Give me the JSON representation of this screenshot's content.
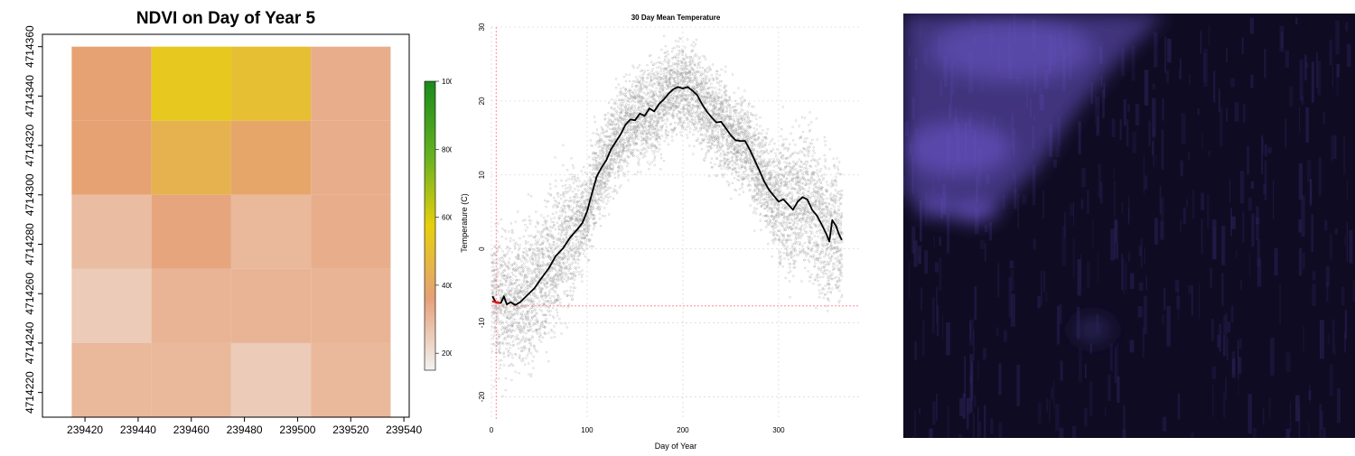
{
  "chart_data": [
    {
      "type": "heatmap",
      "title": "NDVI on Day of Year 5",
      "xlabel": "",
      "ylabel": "",
      "x_ticks": [
        239420,
        239440,
        239460,
        239480,
        239500,
        239520,
        239540
      ],
      "y_ticks": [
        4714220,
        4714240,
        4714260,
        4714280,
        4714300,
        4714320,
        4714340,
        4714360
      ],
      "xlim": [
        239404,
        239542
      ],
      "ylim": [
        4714210,
        4714365
      ],
      "cell_x_edges": [
        239415,
        239445,
        239475,
        239505,
        239535
      ],
      "cell_y_edges": [
        4714210,
        4714240,
        4714270,
        4714300,
        4714330,
        4714360
      ],
      "values": [
        [
          3700,
          5400,
          5000,
          3300
        ],
        [
          3700,
          4400,
          3900,
          3300
        ],
        [
          2900,
          3500,
          3000,
          3300
        ],
        [
          2500,
          3100,
          3100,
          3100
        ],
        [
          3000,
          3000,
          2500,
          3000
        ]
      ],
      "legend": {
        "ticks": [
          2000,
          4000,
          6000,
          8000,
          10000
        ],
        "range": [
          1500,
          10000
        ],
        "palette": [
          "#f2f2f2",
          "#e6a077",
          "#e6d00d",
          "#63b022",
          "#1a8a1a"
        ]
      }
    },
    {
      "type": "scatter",
      "title": "30 Day Mean Temperature",
      "xlabel": "Day of Year",
      "ylabel": "Temperature (C)",
      "xlim": [
        0,
        385
      ],
      "ylim": [
        -23,
        30
      ],
      "x_ticks": [
        0,
        100,
        200,
        300
      ],
      "y_ticks": [
        -20,
        -10,
        0,
        10,
        20,
        30
      ],
      "grid": true,
      "scatter_summary": {
        "description_free": true,
        "points_per_day": 20,
        "spread": 3.2
      },
      "mean_line": [
        [
          1,
          -6.4
        ],
        [
          5,
          -7.3
        ],
        [
          10,
          -7.3
        ],
        [
          13,
          -6.4
        ],
        [
          16,
          -7.5
        ],
        [
          20,
          -7.2
        ],
        [
          25,
          -7.6
        ],
        [
          30,
          -7.2
        ],
        [
          38,
          -6.2
        ],
        [
          45,
          -5.3
        ],
        [
          52,
          -4.0
        ],
        [
          60,
          -2.6
        ],
        [
          67,
          -1.0
        ],
        [
          75,
          0.1
        ],
        [
          82,
          1.5
        ],
        [
          90,
          2.7
        ],
        [
          95,
          3.5
        ],
        [
          100,
          5.1
        ],
        [
          105,
          7.5
        ],
        [
          110,
          9.8
        ],
        [
          115,
          11.0
        ],
        [
          120,
          12.0
        ],
        [
          125,
          13.5
        ],
        [
          130,
          14.5
        ],
        [
          135,
          15.5
        ],
        [
          140,
          16.8
        ],
        [
          145,
          17.5
        ],
        [
          150,
          17.4
        ],
        [
          155,
          18.3
        ],
        [
          160,
          18.0
        ],
        [
          165,
          19.0
        ],
        [
          170,
          18.6
        ],
        [
          175,
          19.6
        ],
        [
          180,
          20.2
        ],
        [
          185,
          21.0
        ],
        [
          190,
          21.6
        ],
        [
          195,
          21.9
        ],
        [
          200,
          21.7
        ],
        [
          205,
          21.9
        ],
        [
          210,
          21.4
        ],
        [
          215,
          20.8
        ],
        [
          220,
          19.6
        ],
        [
          225,
          18.6
        ],
        [
          230,
          17.8
        ],
        [
          235,
          17.1
        ],
        [
          240,
          17.2
        ],
        [
          245,
          16.3
        ],
        [
          250,
          15.4
        ],
        [
          255,
          14.7
        ],
        [
          260,
          14.6
        ],
        [
          265,
          14.6
        ],
        [
          270,
          13.4
        ],
        [
          275,
          12.0
        ],
        [
          280,
          10.6
        ],
        [
          285,
          9.1
        ],
        [
          290,
          8.0
        ],
        [
          295,
          7.2
        ],
        [
          300,
          6.4
        ],
        [
          305,
          6.7
        ],
        [
          310,
          6.0
        ],
        [
          315,
          5.3
        ],
        [
          320,
          6.4
        ],
        [
          325,
          7.0
        ],
        [
          330,
          6.7
        ],
        [
          335,
          5.3
        ],
        [
          340,
          4.5
        ],
        [
          345,
          3.3
        ],
        [
          350,
          2.0
        ],
        [
          353,
          1.0
        ],
        [
          356,
          3.9
        ],
        [
          360,
          3.1
        ],
        [
          363,
          2.0
        ],
        [
          366,
          1.2
        ]
      ],
      "highlight_segment": [
        [
          1,
          -7.1
        ],
        [
          9,
          -7.3
        ]
      ],
      "reference_lines": {
        "vertical_x": 5,
        "horizontal_y": -7.7
      },
      "colors": {
        "points": "#9a9a9a",
        "line": "#000000",
        "highlight": "#ff0000",
        "reference": "#ff8a9a",
        "grid": "#dcdcdc"
      }
    }
  ],
  "image_panel": {
    "colors": {
      "background": "#0f0b22",
      "cloud": "#6a56c8",
      "texture": "#2a2258"
    }
  }
}
